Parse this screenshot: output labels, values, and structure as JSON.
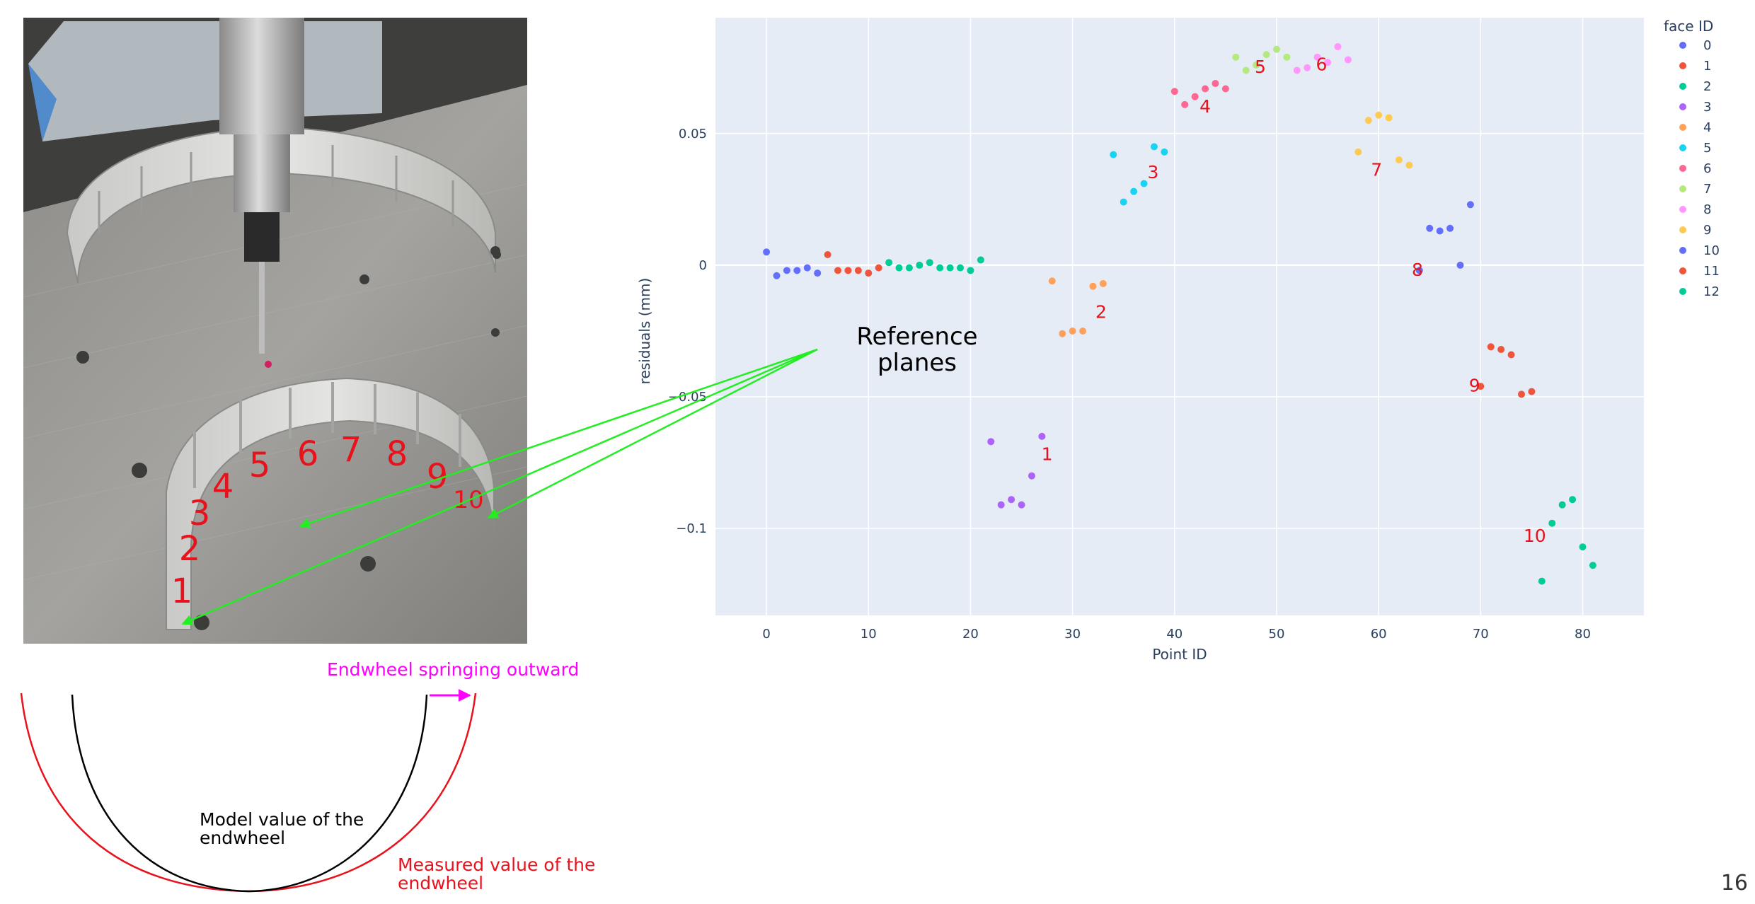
{
  "page_number": "16",
  "reference_planes": {
    "line1": "Reference",
    "line2": "planes"
  },
  "photo": {
    "face_labels": [
      "1",
      "2",
      "3",
      "4",
      "5",
      "6",
      "7",
      "8",
      "9",
      "10"
    ]
  },
  "sketch": {
    "springing_label": "Endwheel springing outward",
    "model_line1": "Model value of the",
    "model_line2": "endwheel",
    "measured_line1": "Measured value of the",
    "measured_line2": "endwheel"
  },
  "colors": {
    "plot_bg": "#e5ecf6",
    "grid": "#ffffff",
    "annotation_red": "#e8121c",
    "arrow_green": "#22ee22",
    "springing_magenta": "#ff00ff",
    "palette": [
      "#636efa",
      "#ef553b",
      "#00cc96",
      "#ab63fa",
      "#ffa15a",
      "#19d3f3",
      "#ff6692",
      "#b6e880",
      "#ff97ff",
      "#fecb52"
    ]
  },
  "chart_data": {
    "type": "scatter",
    "xlabel": "Point ID",
    "ylabel": "residuals (mm)",
    "xlim": [
      -5,
      86
    ],
    "ylim": [
      -0.133,
      0.094
    ],
    "x_ticks": [
      0,
      10,
      20,
      30,
      40,
      50,
      60,
      70,
      80
    ],
    "y_ticks": [
      0.05,
      0,
      -0.05,
      -0.1
    ],
    "y_tick_labels": [
      "0.05",
      "0",
      "−0.05",
      "−0.1"
    ],
    "grid": true,
    "legend_title": "face ID",
    "legend_position": "right",
    "series": [
      {
        "name": "0",
        "points": [
          [
            0,
            0.005
          ],
          [
            1,
            -0.004
          ],
          [
            2,
            -0.002
          ],
          [
            3,
            -0.002
          ],
          [
            4,
            -0.001
          ],
          [
            5,
            -0.003
          ]
        ]
      },
      {
        "name": "1",
        "points": [
          [
            6,
            0.004
          ],
          [
            7,
            -0.002
          ],
          [
            8,
            -0.002
          ],
          [
            9,
            -0.002
          ],
          [
            10,
            -0.003
          ],
          [
            11,
            -0.001
          ]
        ]
      },
      {
        "name": "2",
        "points": [
          [
            12,
            0.001
          ],
          [
            13,
            -0.001
          ],
          [
            14,
            -0.001
          ],
          [
            15,
            0.0
          ],
          [
            16,
            0.001
          ],
          [
            17,
            -0.001
          ],
          [
            18,
            -0.001
          ],
          [
            19,
            -0.001
          ],
          [
            20,
            -0.002
          ],
          [
            21,
            0.002
          ]
        ]
      },
      {
        "name": "3",
        "points": [
          [
            22,
            -0.067
          ],
          [
            23,
            -0.091
          ],
          [
            24,
            -0.089
          ],
          [
            25,
            -0.091
          ],
          [
            26,
            -0.08
          ],
          [
            27,
            -0.065
          ]
        ]
      },
      {
        "name": "4",
        "points": [
          [
            28,
            -0.006
          ],
          [
            29,
            -0.026
          ],
          [
            30,
            -0.025
          ],
          [
            31,
            -0.025
          ],
          [
            32,
            -0.008
          ],
          [
            33,
            -0.007
          ]
        ]
      },
      {
        "name": "5",
        "points": [
          [
            34,
            0.042
          ],
          [
            35,
            0.024
          ],
          [
            36,
            0.028
          ],
          [
            37,
            0.031
          ],
          [
            38,
            0.045
          ],
          [
            39,
            0.043
          ]
        ]
      },
      {
        "name": "6",
        "points": [
          [
            40,
            0.066
          ],
          [
            41,
            0.061
          ],
          [
            42,
            0.064
          ],
          [
            43,
            0.067
          ],
          [
            44,
            0.069
          ],
          [
            45,
            0.067
          ]
        ]
      },
      {
        "name": "7",
        "points": [
          [
            46,
            0.079
          ],
          [
            47,
            0.074
          ],
          [
            48,
            0.076
          ],
          [
            49,
            0.08
          ],
          [
            50,
            0.082
          ],
          [
            51,
            0.079
          ]
        ]
      },
      {
        "name": "8",
        "points": [
          [
            52,
            0.074
          ],
          [
            53,
            0.075
          ],
          [
            54,
            0.079
          ],
          [
            55,
            0.077
          ],
          [
            56,
            0.083
          ],
          [
            57,
            0.078
          ]
        ]
      },
      {
        "name": "9",
        "points": [
          [
            58,
            0.043
          ],
          [
            59,
            0.055
          ],
          [
            60,
            0.057
          ],
          [
            61,
            0.056
          ],
          [
            62,
            0.04
          ],
          [
            63,
            0.038
          ]
        ]
      },
      {
        "name": "10",
        "points": [
          [
            64,
            -0.002
          ],
          [
            65,
            0.014
          ],
          [
            66,
            0.013
          ],
          [
            67,
            0.014
          ],
          [
            68,
            0.0
          ],
          [
            69,
            0.023
          ]
        ]
      },
      {
        "name": "11",
        "points": [
          [
            70,
            -0.046
          ],
          [
            71,
            -0.031
          ],
          [
            72,
            -0.032
          ],
          [
            73,
            -0.034
          ],
          [
            74,
            -0.049
          ],
          [
            75,
            -0.048
          ]
        ]
      },
      {
        "name": "12",
        "points": [
          [
            76,
            -0.12
          ],
          [
            77,
            -0.098
          ],
          [
            78,
            -0.091
          ],
          [
            79,
            -0.089
          ],
          [
            80,
            -0.107
          ],
          [
            81,
            -0.114
          ]
        ]
      }
    ],
    "annotations": [
      {
        "text": "1",
        "x": 27.5,
        "y": -0.074
      },
      {
        "text": "2",
        "x": 32.8,
        "y": -0.02
      },
      {
        "text": "3",
        "x": 37.9,
        "y": 0.033
      },
      {
        "text": "4",
        "x": 43.0,
        "y": 0.058
      },
      {
        "text": "5",
        "x": 48.4,
        "y": 0.073
      },
      {
        "text": "6",
        "x": 54.4,
        "y": 0.074
      },
      {
        "text": "7",
        "x": 59.8,
        "y": 0.034
      },
      {
        "text": "8",
        "x": 63.8,
        "y": -0.004
      },
      {
        "text": "9",
        "x": 69.4,
        "y": -0.048
      },
      {
        "text": "10",
        "x": 75.3,
        "y": -0.105
      }
    ]
  }
}
